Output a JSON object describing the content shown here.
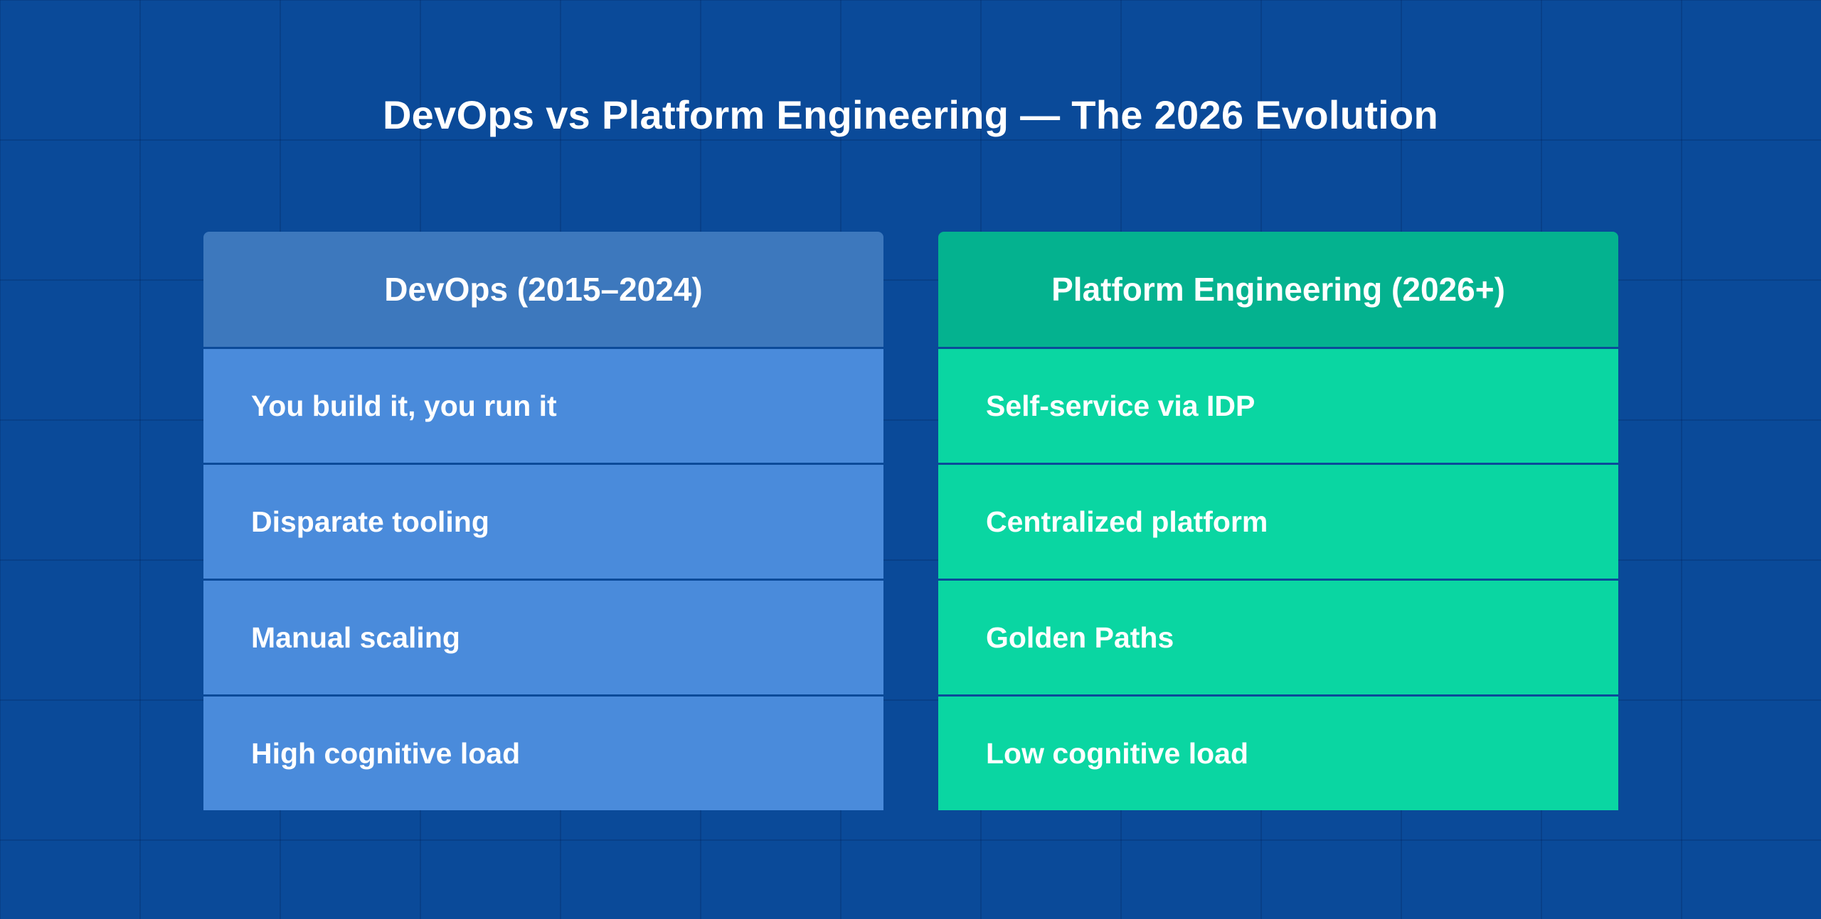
{
  "title": "DevOps vs Platform Engineering — The 2026 Evolution",
  "colors": {
    "background": "#0a4a99",
    "devops_header": "#3d78bd",
    "devops_row": "#4a8bdb",
    "platform_header": "#04b28f",
    "platform_row": "#0ad6a2"
  },
  "columns": [
    {
      "heading": "DevOps (2015–2024)",
      "items": [
        "You build it, you run it",
        "Disparate tooling",
        "Manual scaling",
        "High cognitive load"
      ]
    },
    {
      "heading": "Platform Engineering (2026+)",
      "items": [
        "Self-service via IDP",
        "Centralized platform",
        "Golden Paths",
        "Low cognitive load"
      ]
    }
  ]
}
